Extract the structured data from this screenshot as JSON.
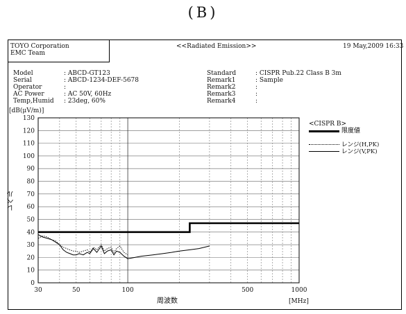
{
  "figure_label": "(B)",
  "header": {
    "company": "TOYO Corporation",
    "team": "EMC Team",
    "report_title": "<<Radiated Emission>>",
    "date": "19 May,2009 16:33"
  },
  "info_left": [
    {
      "label": "Model",
      "value": ": ABCD-GT123"
    },
    {
      "label": "Serial",
      "value": ": ABCD-1234-DEF-5678"
    },
    {
      "label": "Operator",
      "value": ":"
    },
    {
      "label": "AC Power",
      "value": ": AC 50V, 60Hz"
    },
    {
      "label": "Temp,Humid",
      "value": ": 23deg, 60%"
    }
  ],
  "info_right": [
    {
      "label": "Standard",
      "value": ": CISPR Pub.22 Class B 3m"
    },
    {
      "label": "Remark1",
      "value": ": Sample"
    },
    {
      "label": "Remark2",
      "value": ":"
    },
    {
      "label": "Remark3",
      "value": ":"
    },
    {
      "label": "Remark4",
      "value": ":"
    }
  ],
  "colors": {
    "axes": "#000000",
    "grid": "#555555",
    "limit": "#000000",
    "trace": "#222222"
  },
  "chart_data": {
    "type": "line",
    "xscale": "log",
    "xlim": [
      30,
      1000
    ],
    "ylim": [
      0,
      130
    ],
    "ylabel": "レベル",
    "yunit": "[dB(μV/m)]",
    "xlabel": "周波数",
    "xunit": "[MHz]",
    "yticks": [
      0,
      10,
      20,
      30,
      40,
      50,
      60,
      70,
      80,
      90,
      100,
      110,
      120,
      130
    ],
    "xtick_labels": [
      {
        "value": 30,
        "label": "30"
      },
      {
        "value": 50,
        "label": "50"
      },
      {
        "value": 100,
        "label": "100"
      },
      {
        "value": 500,
        "label": "500"
      },
      {
        "value": 1000,
        "label": "1000"
      }
    ],
    "x_gridlines": [
      30,
      40,
      50,
      60,
      70,
      80,
      90,
      100,
      200,
      300,
      400,
      500,
      600,
      700,
      800,
      900,
      1000
    ],
    "grid": true,
    "legend_position": "right",
    "legend": {
      "title": "<CISPR B>",
      "items": [
        {
          "label": "限度値",
          "style": "thick"
        },
        {
          "label": "レンジ(H,PK)",
          "style": "dotted"
        },
        {
          "label": "レンジ(V,PK)",
          "style": "solid"
        }
      ]
    },
    "series": [
      {
        "name": "限度値",
        "style": "thick",
        "x": [
          30,
          230,
          230,
          1000
        ],
        "y": [
          40,
          40,
          47,
          47
        ]
      },
      {
        "name": "レンジ(H,PK)",
        "style": "dotted",
        "x": [
          30,
          32,
          34,
          36,
          38,
          40,
          42,
          44,
          46,
          48,
          50,
          52,
          55,
          58,
          60,
          63,
          66,
          70,
          73,
          76,
          80,
          83,
          86,
          90,
          95,
          100
        ],
        "y": [
          35,
          37,
          36,
          34,
          33,
          30,
          28,
          27,
          26,
          25,
          25,
          24,
          25,
          26,
          24,
          28,
          26,
          30,
          25,
          27,
          28,
          24,
          27,
          29,
          24,
          22
        ]
      },
      {
        "name": "レンジ(V,PK)",
        "style": "solid",
        "x": [
          30,
          32,
          34,
          36,
          38,
          40,
          42,
          44,
          46,
          48,
          50,
          52,
          55,
          58,
          60,
          63,
          66,
          70,
          73,
          76,
          80,
          83,
          86,
          90,
          95,
          100,
          110,
          120,
          140,
          160,
          180,
          200,
          230,
          260,
          300
        ],
        "y": [
          38,
          36,
          35,
          34,
          32,
          30,
          26,
          24,
          23,
          22,
          22,
          23,
          22,
          24,
          23,
          27,
          24,
          29,
          23,
          25,
          26,
          22,
          25,
          24,
          21,
          19,
          20,
          21,
          22,
          23,
          24,
          25,
          26,
          27,
          29
        ]
      }
    ]
  }
}
